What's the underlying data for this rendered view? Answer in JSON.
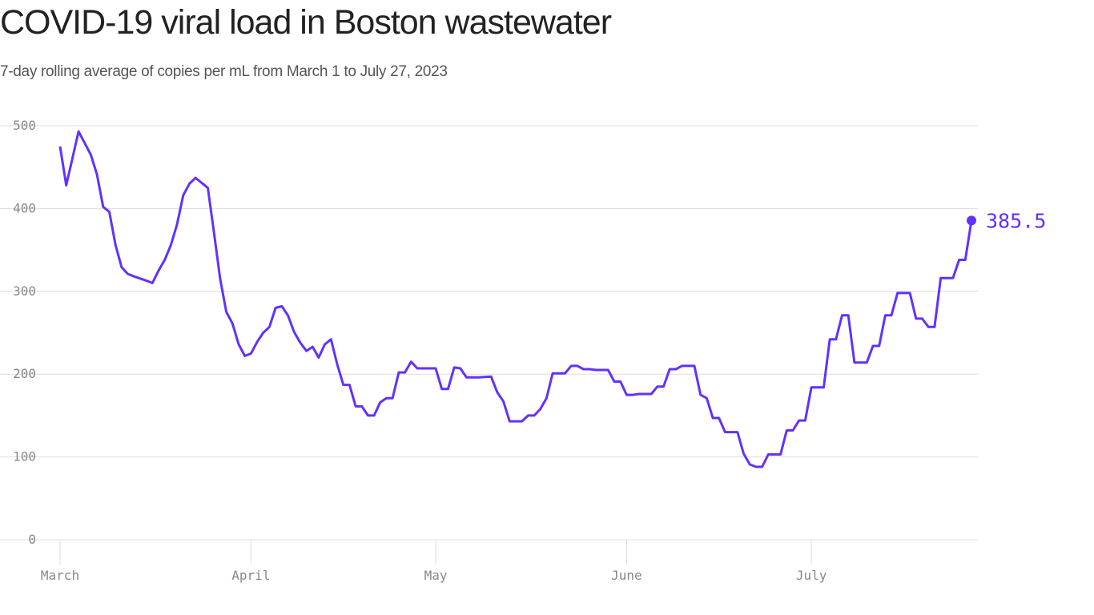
{
  "title": "COVID-19 viral load in Boston wastewater",
  "subtitle": "7-day rolling average of copies per mL from March 1 to July 27, 2023",
  "colors": {
    "line": "#6231ff",
    "grid": "#dddddd",
    "tick": "#888888",
    "title": "#222222"
  },
  "chart_data": {
    "type": "line",
    "title": "COVID-19 viral load in Boston wastewater",
    "subtitle": "7-day rolling average of copies per mL from March 1 to July 27, 2023",
    "xlabel": "",
    "ylabel": "",
    "ylim": [
      0,
      500
    ],
    "xlim": [
      "2023-03-01",
      "2023-07-27"
    ],
    "grid": true,
    "y_ticks": [
      0,
      100,
      200,
      300,
      400,
      500
    ],
    "x_ticks": [
      {
        "date": "2023-03-01",
        "label": "March"
      },
      {
        "date": "2023-04-01",
        "label": "April"
      },
      {
        "date": "2023-05-01",
        "label": "May"
      },
      {
        "date": "2023-06-01",
        "label": "June"
      },
      {
        "date": "2023-07-01",
        "label": "July"
      }
    ],
    "end_label": "385.5",
    "points": [
      [
        "2023-03-01",
        475
      ],
      [
        "2023-03-02",
        428
      ],
      [
        "2023-03-04",
        493
      ],
      [
        "2023-03-06",
        465
      ],
      [
        "2023-03-07",
        441
      ],
      [
        "2023-03-08",
        402
      ],
      [
        "2023-03-09",
        396
      ],
      [
        "2023-03-10",
        356
      ],
      [
        "2023-03-11",
        329
      ],
      [
        "2023-03-12",
        321
      ],
      [
        "2023-03-13",
        318
      ],
      [
        "2023-03-15",
        313
      ],
      [
        "2023-03-16",
        310
      ],
      [
        "2023-03-17",
        325
      ],
      [
        "2023-03-18",
        338
      ],
      [
        "2023-03-19",
        356
      ],
      [
        "2023-03-20",
        381
      ],
      [
        "2023-03-21",
        416
      ],
      [
        "2023-03-22",
        430
      ],
      [
        "2023-03-23",
        437
      ],
      [
        "2023-03-25",
        425
      ],
      [
        "2023-03-26",
        371
      ],
      [
        "2023-03-27",
        315
      ],
      [
        "2023-03-28",
        275
      ],
      [
        "2023-03-29",
        261
      ],
      [
        "2023-03-30",
        236
      ],
      [
        "2023-03-31",
        222
      ],
      [
        "2023-04-01",
        225
      ],
      [
        "2023-04-02",
        239
      ],
      [
        "2023-04-03",
        250
      ],
      [
        "2023-04-04",
        257
      ],
      [
        "2023-04-05",
        280
      ],
      [
        "2023-04-06",
        282
      ],
      [
        "2023-04-07",
        271
      ],
      [
        "2023-04-08",
        251
      ],
      [
        "2023-04-09",
        238
      ],
      [
        "2023-04-10",
        228
      ],
      [
        "2023-04-11",
        233
      ],
      [
        "2023-04-12",
        220
      ],
      [
        "2023-04-13",
        236
      ],
      [
        "2023-04-14",
        242
      ],
      [
        "2023-04-15",
        212
      ],
      [
        "2023-04-16",
        187
      ],
      [
        "2023-04-17",
        187
      ],
      [
        "2023-04-18",
        161
      ],
      [
        "2023-04-19",
        161
      ],
      [
        "2023-04-20",
        150
      ],
      [
        "2023-04-21",
        150
      ],
      [
        "2023-04-22",
        166
      ],
      [
        "2023-04-23",
        171
      ],
      [
        "2023-04-24",
        171
      ],
      [
        "2023-04-25",
        202
      ],
      [
        "2023-04-26",
        202
      ],
      [
        "2023-04-27",
        215
      ],
      [
        "2023-04-28",
        207
      ],
      [
        "2023-05-01",
        207
      ],
      [
        "2023-05-02",
        182
      ],
      [
        "2023-05-03",
        182
      ],
      [
        "2023-05-04",
        208
      ],
      [
        "2023-05-05",
        207
      ],
      [
        "2023-05-06",
        196
      ],
      [
        "2023-05-08",
        196
      ],
      [
        "2023-05-10",
        197
      ],
      [
        "2023-05-11",
        178
      ],
      [
        "2023-05-12",
        167
      ],
      [
        "2023-05-13",
        143
      ],
      [
        "2023-05-15",
        143
      ],
      [
        "2023-05-16",
        150
      ],
      [
        "2023-05-17",
        150
      ],
      [
        "2023-05-18",
        158
      ],
      [
        "2023-05-19",
        171
      ],
      [
        "2023-05-20",
        201
      ],
      [
        "2023-05-22",
        201
      ],
      [
        "2023-05-23",
        210
      ],
      [
        "2023-05-24",
        210
      ],
      [
        "2023-05-25",
        206
      ],
      [
        "2023-05-26",
        206
      ],
      [
        "2023-05-27",
        205
      ],
      [
        "2023-05-29",
        205
      ],
      [
        "2023-05-30",
        191
      ],
      [
        "2023-05-31",
        191
      ],
      [
        "2023-06-01",
        175
      ],
      [
        "2023-06-02",
        175
      ],
      [
        "2023-06-03",
        176
      ],
      [
        "2023-06-05",
        176
      ],
      [
        "2023-06-06",
        185
      ],
      [
        "2023-06-07",
        185
      ],
      [
        "2023-06-08",
        206
      ],
      [
        "2023-06-09",
        206
      ],
      [
        "2023-06-10",
        210
      ],
      [
        "2023-06-12",
        210
      ],
      [
        "2023-06-13",
        175
      ],
      [
        "2023-06-14",
        171
      ],
      [
        "2023-06-15",
        147
      ],
      [
        "2023-06-16",
        147
      ],
      [
        "2023-06-17",
        130
      ],
      [
        "2023-06-19",
        130
      ],
      [
        "2023-06-20",
        104
      ],
      [
        "2023-06-21",
        91
      ],
      [
        "2023-06-22",
        88
      ],
      [
        "2023-06-23",
        88
      ],
      [
        "2023-06-24",
        103
      ],
      [
        "2023-06-26",
        103
      ],
      [
        "2023-06-27",
        132
      ],
      [
        "2023-06-28",
        132
      ],
      [
        "2023-06-29",
        144
      ],
      [
        "2023-06-30",
        144
      ],
      [
        "2023-07-01",
        184
      ],
      [
        "2023-07-03",
        184
      ],
      [
        "2023-07-04",
        242
      ],
      [
        "2023-07-05",
        242
      ],
      [
        "2023-07-06",
        271
      ],
      [
        "2023-07-07",
        271
      ],
      [
        "2023-07-08",
        214
      ],
      [
        "2023-07-10",
        214
      ],
      [
        "2023-07-11",
        234
      ],
      [
        "2023-07-12",
        234
      ],
      [
        "2023-07-13",
        271
      ],
      [
        "2023-07-14",
        271
      ],
      [
        "2023-07-15",
        298
      ],
      [
        "2023-07-17",
        298
      ],
      [
        "2023-07-18",
        267
      ],
      [
        "2023-07-19",
        267
      ],
      [
        "2023-07-20",
        257
      ],
      [
        "2023-07-21",
        257
      ],
      [
        "2023-07-22",
        316
      ],
      [
        "2023-07-24",
        316
      ],
      [
        "2023-07-25",
        338
      ],
      [
        "2023-07-26",
        338
      ],
      [
        "2023-07-27",
        385.5
      ]
    ]
  }
}
